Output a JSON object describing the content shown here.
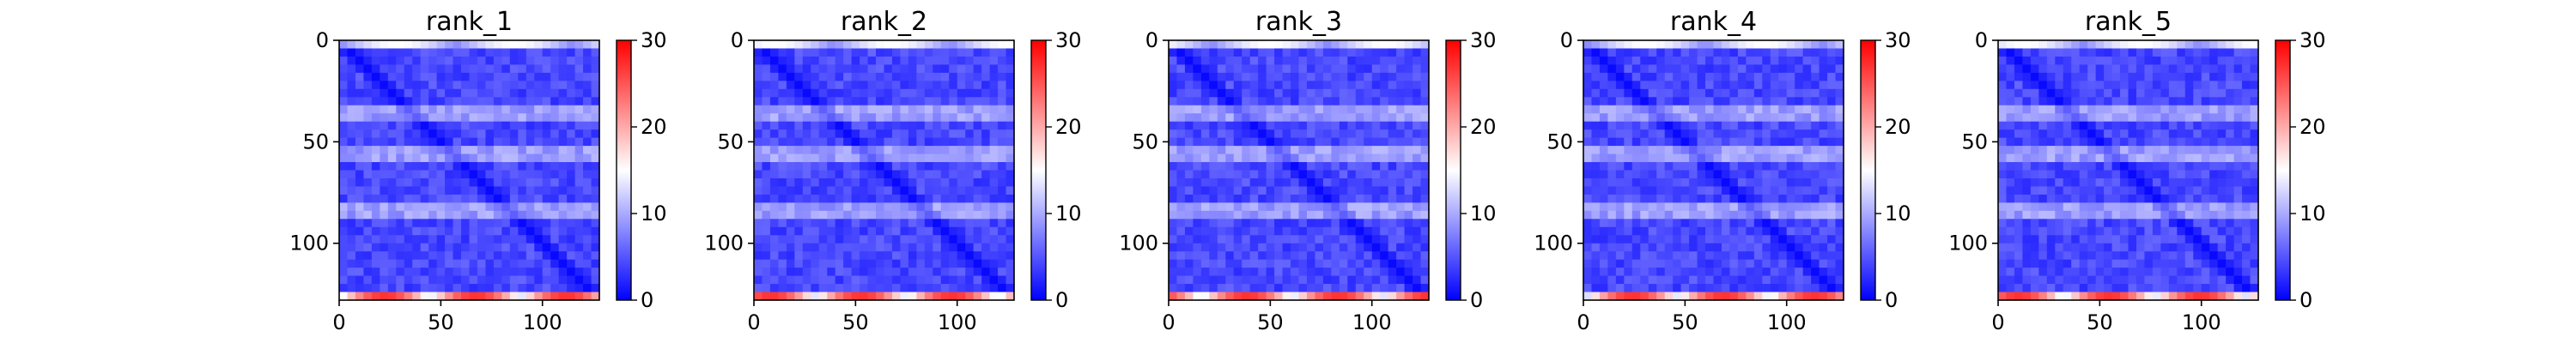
{
  "colormap": {
    "name": "bwr",
    "low_color": "#0000ff",
    "mid_color": "#ffffff",
    "high_color": "#ff0000"
  },
  "chart_data": [
    {
      "type": "heatmap",
      "title": "rank_1",
      "x_ticks": [
        0,
        50,
        100
      ],
      "y_ticks": [
        0,
        50,
        100
      ],
      "xlim": [
        0,
        128
      ],
      "ylim": [
        128,
        0
      ],
      "colorbar": {
        "vmin": 0,
        "vmax": 30,
        "ticks": [
          0,
          10,
          20,
          30
        ]
      },
      "grid": false
    },
    {
      "type": "heatmap",
      "title": "rank_2",
      "x_ticks": [
        0,
        50,
        100
      ],
      "y_ticks": [
        0,
        50,
        100
      ],
      "xlim": [
        0,
        128
      ],
      "ylim": [
        128,
        0
      ],
      "colorbar": {
        "vmin": 0,
        "vmax": 30,
        "ticks": [
          0,
          10,
          20,
          30
        ]
      },
      "grid": false
    },
    {
      "type": "heatmap",
      "title": "rank_3",
      "x_ticks": [
        0,
        50,
        100
      ],
      "y_ticks": [
        0,
        50,
        100
      ],
      "xlim": [
        0,
        128
      ],
      "ylim": [
        128,
        0
      ],
      "colorbar": {
        "vmin": 0,
        "vmax": 30,
        "ticks": [
          0,
          10,
          20,
          30
        ]
      },
      "grid": false
    },
    {
      "type": "heatmap",
      "title": "rank_4",
      "x_ticks": [
        0,
        50,
        100
      ],
      "y_ticks": [
        0,
        50,
        100
      ],
      "xlim": [
        0,
        128
      ],
      "ylim": [
        128,
        0
      ],
      "colorbar": {
        "vmin": 0,
        "vmax": 30,
        "ticks": [
          0,
          10,
          20,
          30
        ]
      },
      "grid": false
    },
    {
      "type": "heatmap",
      "title": "rank_5",
      "x_ticks": [
        0,
        50,
        100
      ],
      "y_ticks": [
        0,
        50,
        100
      ],
      "xlim": [
        0,
        128
      ],
      "ylim": [
        128,
        0
      ],
      "colorbar": {
        "vmin": 0,
        "vmax": 30,
        "ticks": [
          0,
          10,
          20,
          30
        ]
      },
      "grid": false
    }
  ]
}
